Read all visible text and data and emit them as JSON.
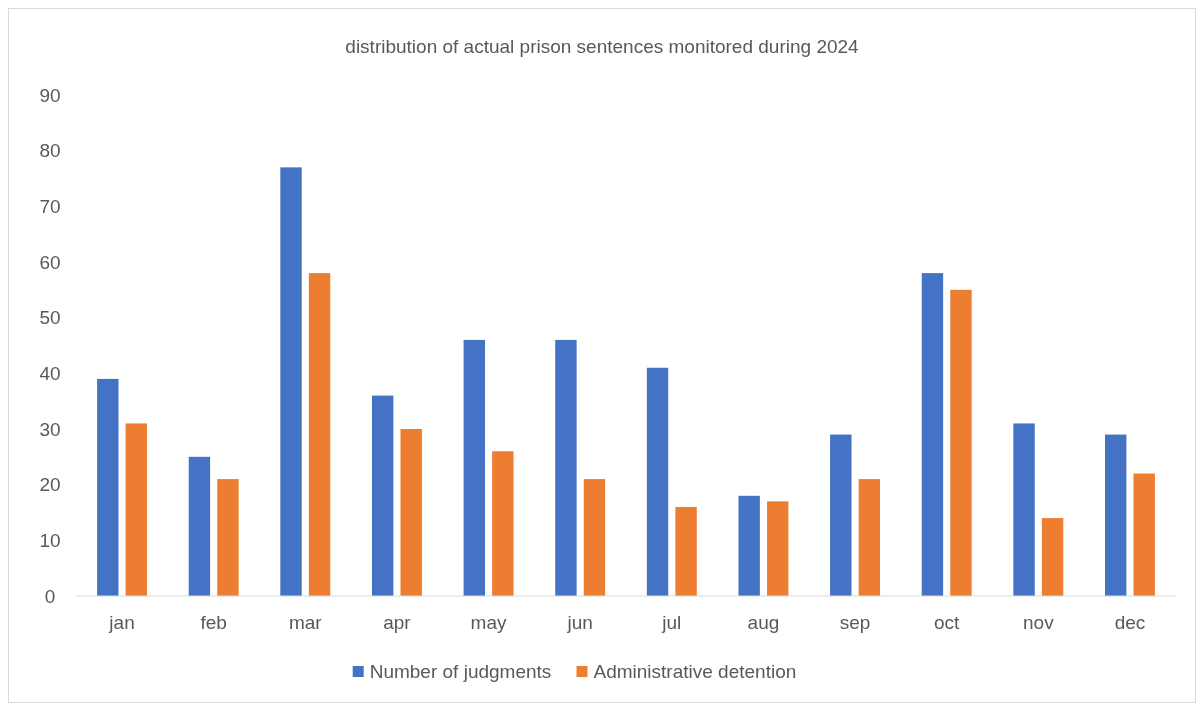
{
  "chart_data": {
    "type": "bar",
    "title": "distribution of actual prison sentences monitored during 2024",
    "categories": [
      "jan",
      "feb",
      "mar",
      "apr",
      "may",
      "jun",
      "jul",
      "aug",
      "sep",
      "oct",
      "nov",
      "dec"
    ],
    "series": [
      {
        "name": "Number of judgments",
        "color": "#4472c4",
        "values": [
          39,
          25,
          77,
          36,
          46,
          46,
          41,
          18,
          29,
          58,
          31,
          29
        ]
      },
      {
        "name": "Administrative detention",
        "color": "#ed7d31",
        "values": [
          31,
          21,
          58,
          30,
          26,
          21,
          16,
          17,
          21,
          55,
          14,
          22
        ]
      }
    ],
    "ylim": [
      0,
      90
    ],
    "yticks": [
      0,
      10,
      20,
      30,
      40,
      50,
      60,
      70,
      80,
      90
    ],
    "grid": false,
    "legend": "bottom"
  }
}
